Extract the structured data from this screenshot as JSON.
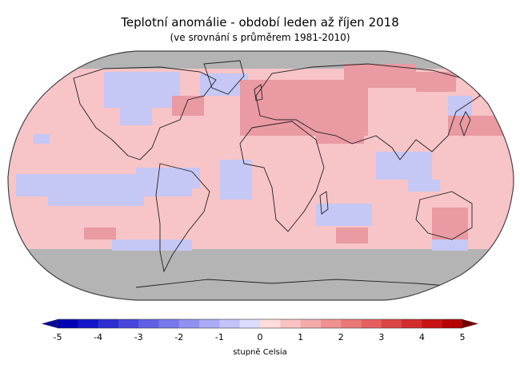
{
  "title": "Teplotní anomálie - období leden až říjen 2018",
  "subtitle": "(ve srovnání s průměrem 1981-2010)",
  "legend": {
    "unit_label": "stupně Celsia",
    "ticks": [
      "-5",
      "-4",
      "-3",
      "-2",
      "-1",
      "0",
      "1",
      "2",
      "3",
      "4",
      "5"
    ],
    "scale_min": -5,
    "scale_max": 5,
    "colors": [
      "#0000b4",
      "#1414c8",
      "#2d2dd2",
      "#4646dc",
      "#5f5fe6",
      "#7878eb",
      "#9191f0",
      "#aaaaf5",
      "#c3c3fa",
      "#dcdcff",
      "#ffdcdc",
      "#fac3c3",
      "#f5aaaa",
      "#f09191",
      "#eb7878",
      "#e65f5f",
      "#dc4646",
      "#d22d2d",
      "#c81414",
      "#b40000"
    ],
    "under_color": "#0a0a8c",
    "over_color": "#6e0000"
  },
  "map": {
    "no_data_color": "#b4b4b4",
    "ocean_base_color": "#f7c4c7",
    "cold_color": "#c5c7f4",
    "warm_color": "#e99aa2"
  }
}
